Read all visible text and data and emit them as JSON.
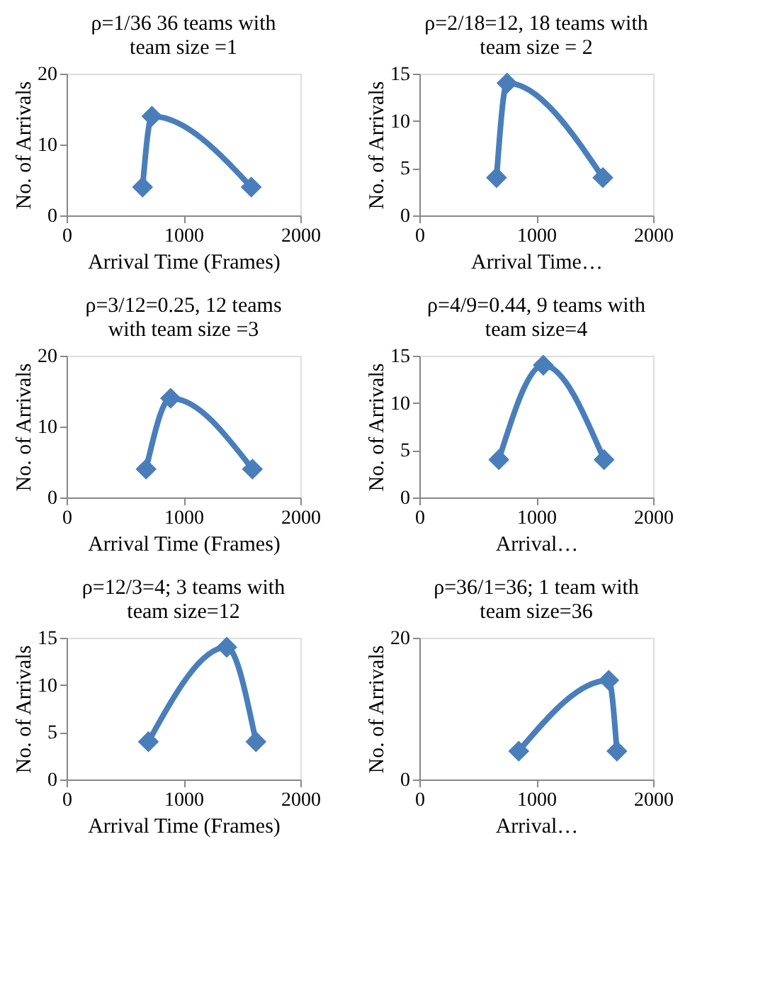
{
  "chart_data": [
    {
      "type": "line",
      "title": "ρ=1/36  36 teams with team size =1",
      "xlabel": "Arrival Time (Frames)",
      "ylabel": "No. of Arrivals",
      "x": [
        650,
        730,
        1580
      ],
      "series": [
        {
          "color": "#4a7ebb",
          "values": [
            4,
            14,
            4
          ]
        }
      ],
      "xlim": [
        0,
        2000
      ],
      "xticks": [
        0,
        1000,
        2000
      ],
      "ylim": [
        0,
        20
      ],
      "yticks": [
        0,
        10,
        20
      ],
      "marker": "diamond",
      "grid": false
    },
    {
      "type": "line",
      "title": "ρ=2/18=12, 18 teams with team size = 2",
      "xlabel": "Arrival Time…",
      "ylabel": "No. of Arrivals",
      "x": [
        660,
        750,
        1570
      ],
      "series": [
        {
          "color": "#4a7ebb",
          "values": [
            4,
            14,
            4
          ]
        }
      ],
      "xlim": [
        0,
        2000
      ],
      "xticks": [
        0,
        1000,
        2000
      ],
      "ylim": [
        0,
        15
      ],
      "yticks": [
        0,
        5,
        10,
        15
      ],
      "marker": "diamond",
      "grid": false
    },
    {
      "type": "line",
      "title": "ρ=3/12=0.25, 12 teams with team size =3",
      "xlabel": "Arrival Time (Frames)",
      "ylabel": "No. of Arrivals",
      "x": [
        680,
        890,
        1590
      ],
      "series": [
        {
          "color": "#4a7ebb",
          "values": [
            4,
            14,
            4
          ]
        }
      ],
      "xlim": [
        0,
        2000
      ],
      "xticks": [
        0,
        1000,
        2000
      ],
      "ylim": [
        0,
        20
      ],
      "yticks": [
        0,
        10,
        20
      ],
      "marker": "diamond",
      "grid": false
    },
    {
      "type": "line",
      "title": "ρ=4/9=0.44, 9 teams with team size=4",
      "xlabel": "Arrival…",
      "ylabel": "No. of Arrivals",
      "x": [
        680,
        1060,
        1580
      ],
      "series": [
        {
          "color": "#4a7ebb",
          "values": [
            4,
            14,
            4
          ]
        }
      ],
      "xlim": [
        0,
        2000
      ],
      "xticks": [
        0,
        1000,
        2000
      ],
      "ylim": [
        0,
        15
      ],
      "yticks": [
        0,
        5,
        10,
        15
      ],
      "marker": "diamond",
      "grid": false
    },
    {
      "type": "line",
      "title": "ρ=12/3=4;  3 teams with team size=12",
      "xlabel": "Arrival Time (Frames)",
      "ylabel": "No. of Arrivals",
      "x": [
        700,
        1370,
        1620
      ],
      "series": [
        {
          "color": "#4a7ebb",
          "values": [
            4,
            14,
            4
          ]
        }
      ],
      "xlim": [
        0,
        2000
      ],
      "xticks": [
        0,
        1000,
        2000
      ],
      "ylim": [
        0,
        15
      ],
      "yticks": [
        0,
        5,
        10,
        15
      ],
      "marker": "diamond",
      "grid": false
    },
    {
      "type": "line",
      "title": "ρ=36/1=36; 1 team with team size=36",
      "xlabel": "Arrival…",
      "ylabel": "No. of Arrivals",
      "x": [
        850,
        1620,
        1690
      ],
      "series": [
        {
          "color": "#4a7ebb",
          "values": [
            4,
            14,
            4
          ]
        }
      ],
      "xlim": [
        0,
        2000
      ],
      "xticks": [
        0,
        1000,
        2000
      ],
      "ylim": [
        0,
        20
      ],
      "yticks": [
        0,
        20
      ],
      "marker": "diamond",
      "grid": false,
      "legend": false
    }
  ]
}
